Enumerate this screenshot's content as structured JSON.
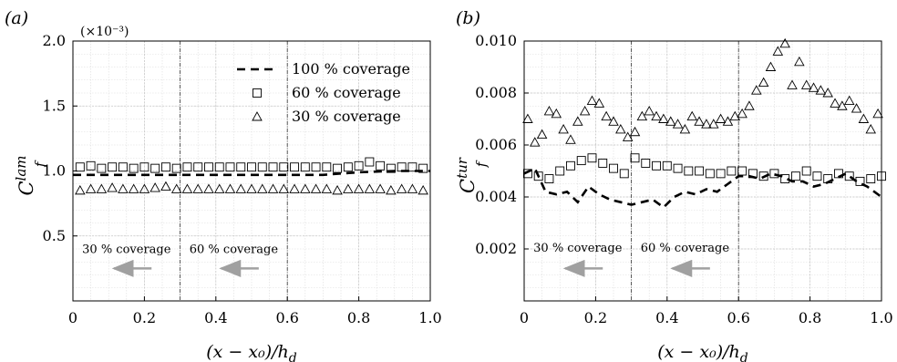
{
  "chart_data": [
    {
      "type": "scatter",
      "panel_label": "(a)",
      "scale_note": "(×10⁻³)",
      "xlabel": "(x − x₀)/h",
      "xlabel_sub": "d",
      "ylabel": "C",
      "ylabel_sub": "f",
      "ylabel_sup": "lam",
      "xlim": [
        0,
        1.0
      ],
      "ylim": [
        0,
        2.0
      ],
      "xticks": [
        0,
        0.2,
        0.4,
        0.6,
        0.8,
        1.0
      ],
      "xtick_labels": [
        "0",
        "0.2",
        "0.4",
        "0.6",
        "0.8",
        "1.0"
      ],
      "yticks": [
        0.5,
        1.0,
        1.5,
        2.0
      ],
      "ytick_labels": [
        "0.5",
        "1.0",
        "1.5",
        "2.0"
      ],
      "grid": true,
      "legend_position": "top-right",
      "vlines": [
        0.3,
        0.6
      ],
      "annotations": [
        {
          "text": "30 % coverage",
          "x": 0.15,
          "y": 0.37,
          "arrow_from": 0.22,
          "arrow_to": 0.115,
          "arrow_y": 0.25
        },
        {
          "text": "60 % coverage",
          "x": 0.45,
          "y": 0.37,
          "arrow_from": 0.52,
          "arrow_to": 0.415,
          "arrow_y": 0.25
        }
      ],
      "series": [
        {
          "name": "100 % coverage",
          "marker": "dashed-line",
          "x": [
            0.0,
            0.1,
            0.2,
            0.3,
            0.4,
            0.5,
            0.6,
            0.7,
            0.8,
            0.9,
            1.0
          ],
          "values": [
            0.97,
            0.97,
            0.97,
            0.97,
            0.97,
            0.97,
            0.97,
            0.97,
            0.99,
            1.0,
            1.0
          ]
        },
        {
          "name": "60 % coverage",
          "marker": "square",
          "x": [
            0.02,
            0.05,
            0.08,
            0.11,
            0.14,
            0.17,
            0.2,
            0.23,
            0.26,
            0.29,
            0.32,
            0.35,
            0.38,
            0.41,
            0.44,
            0.47,
            0.5,
            0.53,
            0.56,
            0.59,
            0.62,
            0.65,
            0.68,
            0.71,
            0.74,
            0.77,
            0.8,
            0.83,
            0.86,
            0.89,
            0.92,
            0.95,
            0.98
          ],
          "values": [
            1.03,
            1.04,
            1.02,
            1.03,
            1.03,
            1.02,
            1.03,
            1.02,
            1.03,
            1.02,
            1.03,
            1.03,
            1.03,
            1.03,
            1.03,
            1.03,
            1.03,
            1.03,
            1.03,
            1.03,
            1.03,
            1.03,
            1.03,
            1.03,
            1.02,
            1.03,
            1.04,
            1.07,
            1.04,
            1.02,
            1.03,
            1.03,
            1.02
          ]
        },
        {
          "name": "30 % coverage",
          "marker": "triangle",
          "x": [
            0.02,
            0.05,
            0.08,
            0.11,
            0.14,
            0.17,
            0.2,
            0.23,
            0.26,
            0.29,
            0.32,
            0.35,
            0.38,
            0.41,
            0.44,
            0.47,
            0.5,
            0.53,
            0.56,
            0.59,
            0.62,
            0.65,
            0.68,
            0.71,
            0.74,
            0.77,
            0.8,
            0.83,
            0.86,
            0.89,
            0.92,
            0.95,
            0.98
          ],
          "values": [
            0.85,
            0.86,
            0.86,
            0.87,
            0.86,
            0.86,
            0.86,
            0.87,
            0.88,
            0.86,
            0.86,
            0.86,
            0.86,
            0.86,
            0.86,
            0.86,
            0.86,
            0.86,
            0.86,
            0.86,
            0.86,
            0.86,
            0.86,
            0.86,
            0.85,
            0.86,
            0.86,
            0.86,
            0.86,
            0.85,
            0.86,
            0.86,
            0.85
          ]
        }
      ]
    },
    {
      "type": "scatter",
      "panel_label": "(b)",
      "xlabel": "(x − x₀)/h",
      "xlabel_sub": "d",
      "ylabel": "C",
      "ylabel_sub": "f",
      "ylabel_sup": "tur",
      "xlim": [
        0,
        1.0
      ],
      "ylim": [
        0,
        0.01
      ],
      "xticks": [
        0,
        0.2,
        0.4,
        0.6,
        0.8,
        1.0
      ],
      "xtick_labels": [
        "0",
        "0.2",
        "0.4",
        "0.6",
        "0.8",
        "1.0"
      ],
      "yticks": [
        0.002,
        0.004,
        0.006,
        0.008,
        0.01
      ],
      "ytick_labels": [
        "0.002",
        "0.004",
        "0.006",
        "0.008",
        "0.010"
      ],
      "grid": true,
      "vlines": [
        0.3,
        0.6
      ],
      "annotations": [
        {
          "text": "30 % coverage",
          "x": 0.15,
          "y": 0.0019,
          "arrow_from": 0.22,
          "arrow_to": 0.115,
          "arrow_y": 0.00125
        },
        {
          "text": "60 % coverage",
          "x": 0.45,
          "y": 0.0019,
          "arrow_from": 0.52,
          "arrow_to": 0.415,
          "arrow_y": 0.00125
        }
      ],
      "series": [
        {
          "name": "100 % coverage",
          "marker": "dashed-line",
          "x": [
            0.0,
            0.03,
            0.06,
            0.09,
            0.12,
            0.15,
            0.18,
            0.21,
            0.24,
            0.27,
            0.3,
            0.33,
            0.36,
            0.39,
            0.42,
            0.45,
            0.48,
            0.51,
            0.54,
            0.57,
            0.6,
            0.63,
            0.66,
            0.69,
            0.72,
            0.75,
            0.78,
            0.81,
            0.84,
            0.87,
            0.9,
            0.93,
            0.96,
            1.0
          ],
          "values": [
            0.0049,
            0.0051,
            0.0042,
            0.0041,
            0.0042,
            0.0038,
            0.0044,
            0.0041,
            0.0039,
            0.0038,
            0.0037,
            0.0038,
            0.0039,
            0.0036,
            0.004,
            0.0042,
            0.0041,
            0.0043,
            0.0042,
            0.0045,
            0.0048,
            0.0048,
            0.0047,
            0.0049,
            0.0048,
            0.0046,
            0.0046,
            0.0044,
            0.0045,
            0.0047,
            0.0049,
            0.0046,
            0.0044,
            0.004
          ]
        },
        {
          "name": "60 % coverage",
          "marker": "square",
          "x": [
            0.01,
            0.04,
            0.07,
            0.1,
            0.13,
            0.16,
            0.19,
            0.22,
            0.25,
            0.28,
            0.31,
            0.34,
            0.37,
            0.4,
            0.43,
            0.46,
            0.49,
            0.52,
            0.55,
            0.58,
            0.61,
            0.64,
            0.67,
            0.7,
            0.73,
            0.76,
            0.79,
            0.82,
            0.85,
            0.88,
            0.91,
            0.94,
            0.97,
            1.0
          ],
          "values": [
            0.0049,
            0.0048,
            0.0047,
            0.005,
            0.0052,
            0.0054,
            0.0055,
            0.0053,
            0.0051,
            0.0049,
            0.0055,
            0.0053,
            0.0052,
            0.0052,
            0.0051,
            0.005,
            0.005,
            0.0049,
            0.0049,
            0.005,
            0.005,
            0.0049,
            0.0048,
            0.0049,
            0.0047,
            0.0048,
            0.005,
            0.0048,
            0.0047,
            0.0049,
            0.0048,
            0.0046,
            0.0047,
            0.0048
          ]
        },
        {
          "name": "30 % coverage",
          "marker": "triangle",
          "x": [
            0.01,
            0.03,
            0.05,
            0.07,
            0.09,
            0.11,
            0.13,
            0.15,
            0.17,
            0.19,
            0.21,
            0.23,
            0.25,
            0.27,
            0.29,
            0.31,
            0.33,
            0.35,
            0.37,
            0.39,
            0.41,
            0.43,
            0.45,
            0.47,
            0.49,
            0.51,
            0.53,
            0.55,
            0.57,
            0.59,
            0.61,
            0.63,
            0.65,
            0.67,
            0.69,
            0.71,
            0.73,
            0.75,
            0.77,
            0.79,
            0.81,
            0.83,
            0.85,
            0.87,
            0.89,
            0.91,
            0.93,
            0.95,
            0.97,
            0.99
          ],
          "values": [
            0.007,
            0.0061,
            0.0064,
            0.0073,
            0.0072,
            0.0066,
            0.0062,
            0.0069,
            0.0073,
            0.0077,
            0.0076,
            0.0071,
            0.0069,
            0.0066,
            0.0063,
            0.0065,
            0.0071,
            0.0073,
            0.0071,
            0.007,
            0.0069,
            0.0068,
            0.0066,
            0.0071,
            0.0069,
            0.0068,
            0.0068,
            0.007,
            0.0069,
            0.0071,
            0.0072,
            0.0075,
            0.0081,
            0.0084,
            0.009,
            0.0096,
            0.0099,
            0.0083,
            0.0092,
            0.0083,
            0.0082,
            0.0081,
            0.008,
            0.0076,
            0.0075,
            0.0077,
            0.0074,
            0.007,
            0.0066,
            0.0072
          ]
        }
      ]
    }
  ]
}
